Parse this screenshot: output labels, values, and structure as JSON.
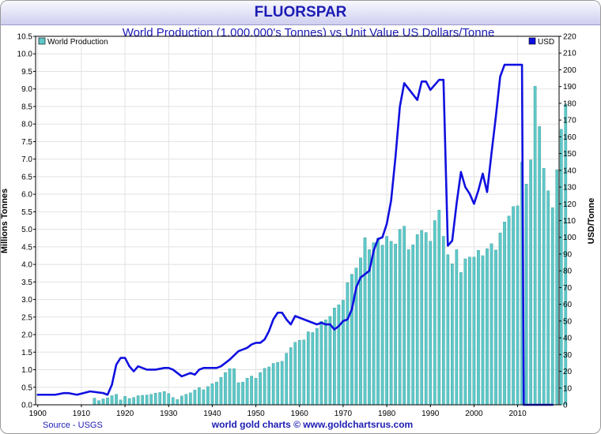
{
  "banner_title": "FLUORSPAR",
  "footer": {
    "source": "Source - USGS",
    "credit": "world gold charts © www.goldchartsrus.com"
  },
  "chart_data": {
    "type": "bar",
    "title": "World Production (1,000,000's Tonnes) vs Unit Value US Dollars/Tonne",
    "xlabel": "",
    "ylabel": "Millions Tonnes",
    "y2label": "USD/Tonne",
    "xlim": [
      1899.5,
      2019.5
    ],
    "ylim": [
      0,
      10.5
    ],
    "y2lim": [
      0,
      220
    ],
    "x_ticks": [
      1900,
      1910,
      1920,
      1930,
      1940,
      1950,
      1960,
      1970,
      1980,
      1990,
      2000,
      2010
    ],
    "y_ticks": [
      "0.0",
      "0.5",
      "1.0",
      "1.5",
      "2.0",
      "2.5",
      "3.0",
      "3.5",
      "4.0",
      "4.5",
      "5.0",
      "5.5",
      "6.0",
      "6.5",
      "7.0",
      "7.5",
      "8.0",
      "8.5",
      "9.0",
      "9.5",
      "10.0",
      "10.5"
    ],
    "y2_ticks": [
      "0",
      "10",
      "20",
      "30",
      "40",
      "50",
      "60",
      "70",
      "80",
      "90",
      "100",
      "110",
      "120",
      "130",
      "140",
      "150",
      "160",
      "170",
      "180",
      "190",
      "200",
      "210",
      "220"
    ],
    "grid": true,
    "legend": "top",
    "colors": {
      "bars": "#5ec8c8",
      "bar_edge": "#3a9a9a",
      "line": "#1010e0",
      "grid": "#e2e2e2",
      "title": "#1c1cb4"
    },
    "series": [
      {
        "name": "World Production",
        "type": "bar",
        "axis": "left",
        "x_start": 1913,
        "values": [
          0.19,
          0.12,
          0.17,
          0.2,
          0.26,
          0.3,
          0.14,
          0.24,
          0.18,
          0.21,
          0.26,
          0.27,
          0.28,
          0.3,
          0.33,
          0.35,
          0.38,
          0.32,
          0.21,
          0.15,
          0.25,
          0.3,
          0.34,
          0.42,
          0.49,
          0.43,
          0.52,
          0.6,
          0.65,
          0.78,
          0.92,
          1.03,
          1.03,
          0.63,
          0.65,
          0.76,
          0.82,
          0.76,
          0.92,
          1.04,
          1.08,
          1.18,
          1.21,
          1.24,
          1.47,
          1.63,
          1.78,
          1.84,
          1.85,
          2.08,
          2.06,
          2.18,
          2.38,
          2.42,
          2.52,
          2.76,
          2.85,
          2.98,
          3.48,
          3.72,
          3.9,
          4.19,
          4.76,
          4.42,
          4.62,
          4.75,
          4.55,
          4.8,
          4.66,
          4.58,
          5.0,
          5.09,
          4.42,
          4.56,
          4.85,
          4.97,
          4.91,
          4.66,
          5.25,
          5.55,
          4.8,
          4.28,
          4.02,
          4.42,
          3.77,
          4.16,
          4.21,
          4.21,
          4.4,
          4.25,
          4.45,
          4.59,
          4.41,
          4.9,
          5.21,
          5.38,
          5.65,
          5.67,
          6.92,
          6.29,
          6.98,
          9.08,
          7.93,
          6.74,
          6.1,
          5.62,
          6.7,
          7.85,
          8.57
        ]
      },
      {
        "name": "USD",
        "type": "line",
        "axis": "right",
        "x": [
          1900,
          1904,
          1906,
          1907,
          1909,
          1912,
          1915,
          1916,
          1917,
          1918,
          1919,
          1920,
          1921,
          1922,
          1923,
          1925,
          1927,
          1929,
          1930,
          1931,
          1932,
          1933,
          1934,
          1935,
          1936,
          1937,
          1938,
          1939,
          1940,
          1941,
          1942,
          1943,
          1944,
          1946,
          1947,
          1948,
          1949,
          1950,
          1951,
          1952,
          1953,
          1954,
          1955,
          1956,
          1957,
          1958,
          1959,
          1960,
          1962,
          1963,
          1964,
          1965,
          1966,
          1967,
          1968,
          1969,
          1970,
          1971,
          1972,
          1973,
          1974,
          1975,
          1976,
          1977,
          1978,
          1979,
          1980,
          1981,
          1982,
          1983,
          1984,
          1987,
          1988,
          1989,
          1990,
          1992,
          1993,
          1994,
          1995,
          1996,
          1997,
          1998,
          1999,
          2000,
          2001,
          2002,
          2003,
          2004,
          2005,
          2006,
          2007,
          2008,
          2011,
          2011.4,
          2018
        ],
        "values": [
          6,
          6,
          7,
          7,
          6,
          8,
          7,
          6,
          12,
          24,
          28,
          28,
          23,
          20,
          23,
          21,
          21,
          22,
          22,
          21,
          19,
          17,
          18,
          19,
          18,
          21,
          22,
          22,
          22,
          22,
          23,
          25,
          27,
          32,
          33,
          34,
          36,
          37,
          37,
          39,
          44,
          51,
          55,
          55,
          51,
          48,
          53,
          52,
          50,
          49,
          48,
          49,
          48,
          48,
          45,
          47,
          50,
          51,
          57,
          70,
          76,
          78,
          80,
          92,
          99,
          100,
          108,
          122,
          148,
          178,
          192,
          182,
          193,
          193,
          188,
          194,
          194,
          95,
          98,
          120,
          139,
          130,
          126,
          120,
          128,
          138,
          127,
          150,
          172,
          196,
          203,
          203,
          203,
          0,
          0
        ]
      }
    ]
  }
}
